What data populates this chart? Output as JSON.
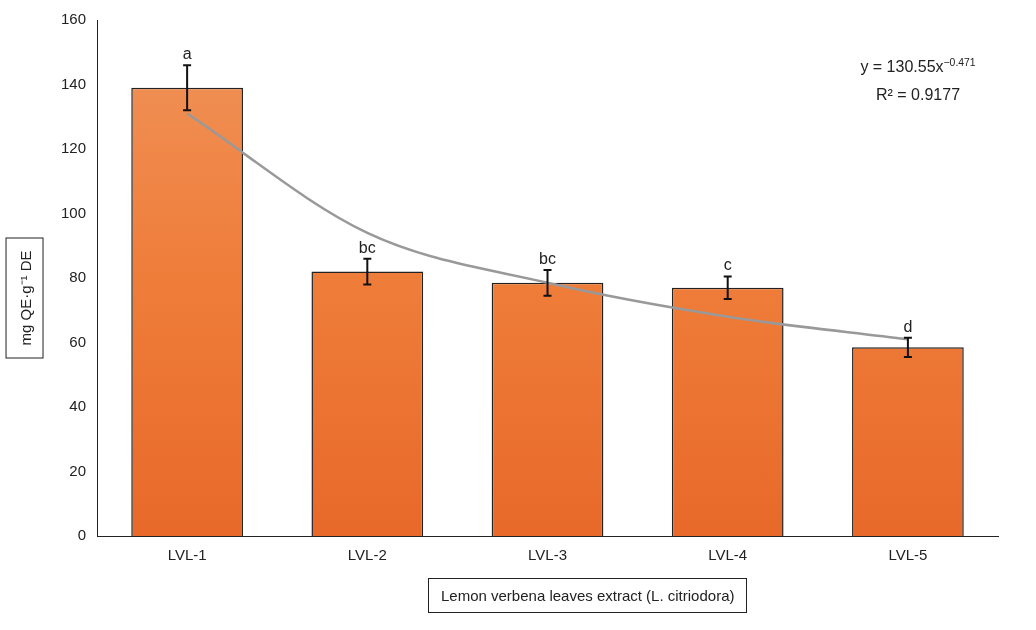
{
  "chart_data": {
    "type": "bar",
    "xlabel": "Lemon verbena leaves extract (L. citriodora)",
    "ylabel": "mg QE·g⁻¹ DE",
    "categories": [
      "LVL-1",
      "LVL-2",
      "LVL-3",
      "LVL-4",
      "LVL-5"
    ],
    "series": [
      {
        "color": "#ef7d3a",
        "values": [
          139,
          82,
          78.5,
          77,
          58.5
        ],
        "errors": [
          7,
          4,
          4,
          3.5,
          3
        ]
      },
      {
        "type": "line",
        "color": "#999999",
        "x": [
          "LVL-1",
          "LVL-2",
          "LVL-3",
          "LVL-4",
          "LVL-5"
        ],
        "values": [
          131,
          94,
          78.5,
          68,
          61
        ]
      }
    ],
    "ylim": [
      0,
      160
    ],
    "yticks": [
      0,
      20,
      40,
      60,
      80,
      100,
      120,
      140,
      160
    ],
    "grid": false,
    "legend": false,
    "marker": "none",
    "annotations": [
      {
        "text": "a",
        "x": "LVL-1",
        "y": 146
      },
      {
        "text": "bc",
        "x": "LVL-2",
        "y": 86
      },
      {
        "text": "bc",
        "x": "LVL-3",
        "y": 82.5
      },
      {
        "text": "c",
        "x": "LVL-4",
        "y": 80.5
      },
      {
        "text": "d",
        "x": "LVL-5",
        "y": 61.5
      },
      "y = 130.55x$^{−0.471}$",
      "R² = 0.9177"
    ]
  }
}
